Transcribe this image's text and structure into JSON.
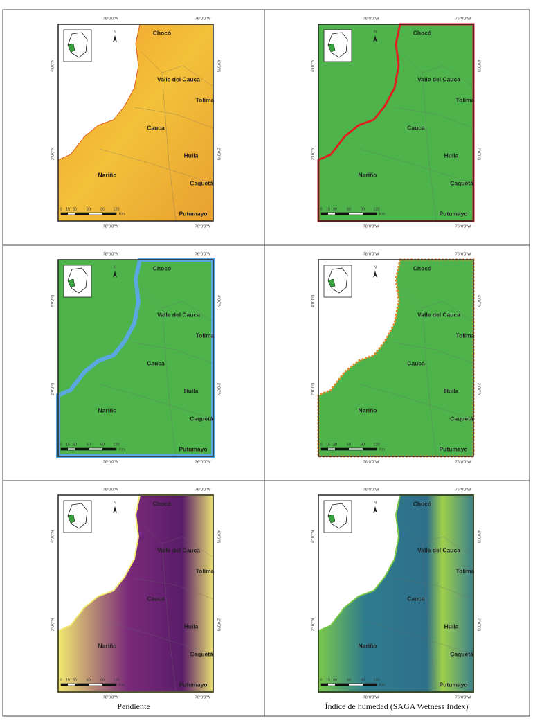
{
  "map_labels": {
    "lon": [
      "78°0'0\"W",
      "76°0'0\"W"
    ],
    "lat": [
      "4°0'0\"N",
      "2°0'0\"N"
    ],
    "north": "N",
    "regions": [
      "Chocó",
      "Valle del Cauca",
      "Tolima",
      "Cauca",
      "Huila",
      "Nariño",
      "Caquetá",
      "Putumayo"
    ],
    "scale": [
      "0",
      "15",
      "30",
      "60",
      "90",
      "120"
    ],
    "scale_unit": "Km"
  },
  "captions": [
    "Pendiente",
    "Índice de humedad (SAGA Wetness Index)"
  ]
}
